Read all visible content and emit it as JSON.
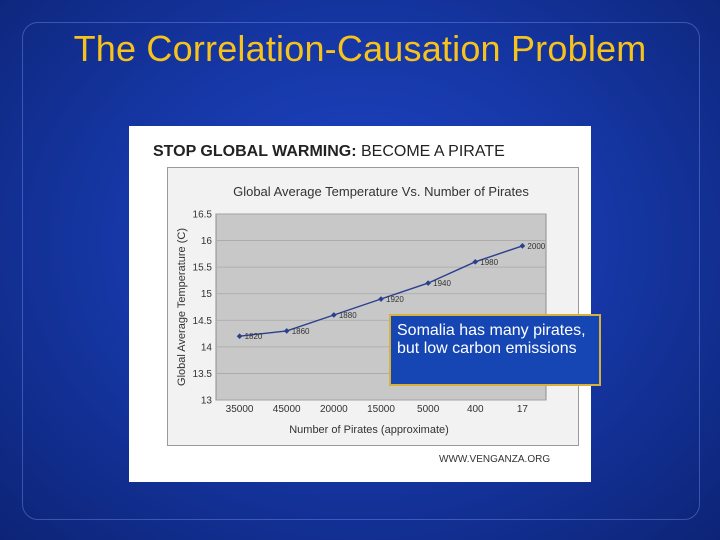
{
  "slide": {
    "title": "The Correlation-Causation Problem"
  },
  "figure": {
    "headline_bold": "STOP GLOBAL WARMING:",
    "headline_rest": " BECOME A PIRATE",
    "credit": "WWW.VENGANZA.ORG"
  },
  "callout": {
    "text": "Somalia has many pirates, but low carbon emissions"
  },
  "colors": {
    "background": "#1638a8",
    "title": "#f7c21c",
    "series_line": "#2b3f8f",
    "plot_area": "#c8c8c8",
    "callout_fill": "#1546b4",
    "callout_border": "#d6b23a"
  },
  "chart_data": {
    "type": "line",
    "title": "Global Average Temperature Vs. Number of Pirates",
    "xlabel": "Number of Pirates (approximate)",
    "ylabel": "Global Average Temperature (C)",
    "categories": [
      "35000",
      "45000",
      "20000",
      "15000",
      "5000",
      "400",
      "17"
    ],
    "ylim": [
      13,
      16.5
    ],
    "yticks": [
      "13",
      "13.5",
      "14",
      "14.5",
      "15",
      "15.5",
      "16",
      "16.5"
    ],
    "grid": true,
    "legend": "none",
    "series": [
      {
        "values": [
          14.2,
          14.3,
          14.6,
          14.9,
          15.2,
          15.6,
          15.9
        ],
        "point_labels": [
          "1820",
          "1860",
          "1880",
          "1920",
          "1940",
          "1980",
          "2000"
        ]
      }
    ]
  }
}
